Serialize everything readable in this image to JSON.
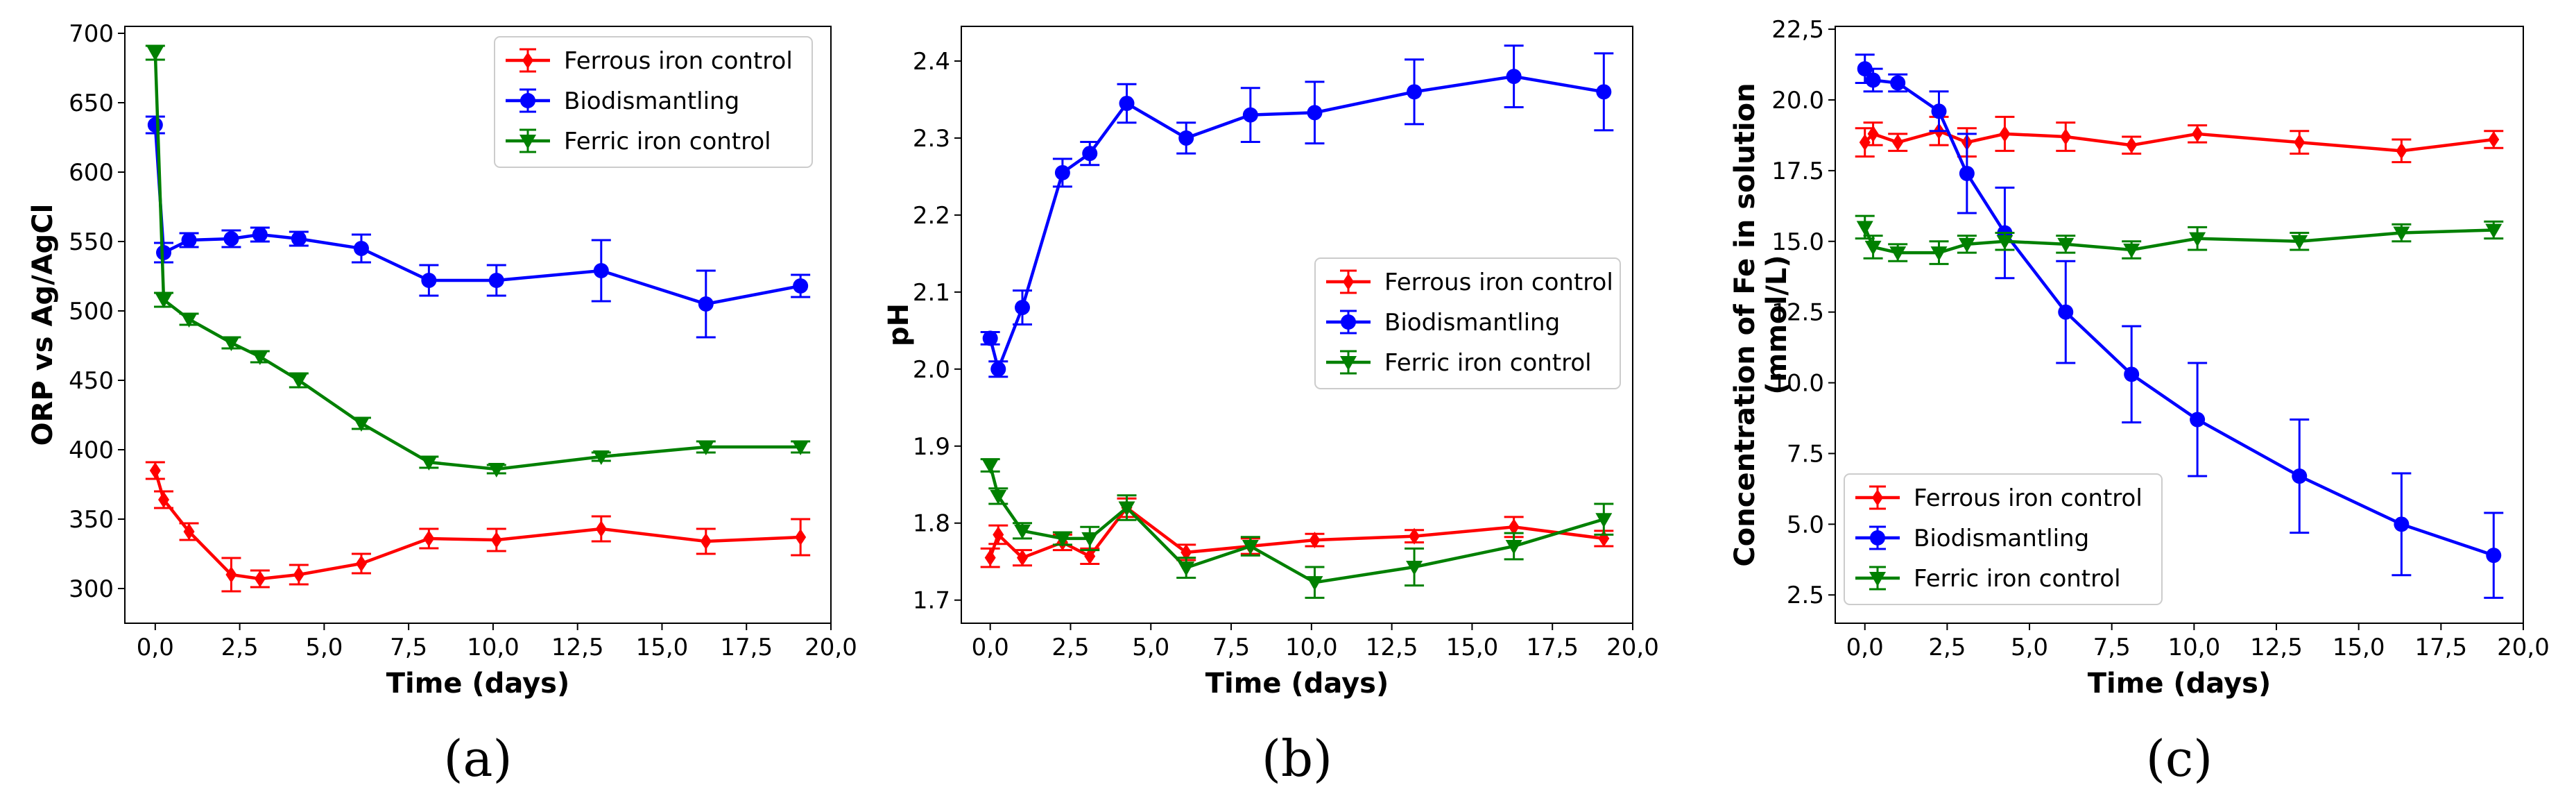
{
  "figure": {
    "panel_tags": [
      "(a)",
      "(b)",
      "(c)"
    ]
  },
  "colors": {
    "ferrous": "#ff0000",
    "bio": "#0000ff",
    "ferric": "#008000"
  },
  "chart_data": [
    {
      "type": "line",
      "panel": "(a)",
      "xlabel": "Time (days)",
      "ylabel": [
        "ORP vs Ag/AgCl"
      ],
      "xlim": [
        -0.9,
        20.0
      ],
      "ylim": [
        275,
        705
      ],
      "xticks": [
        0,
        2.5,
        5,
        7.5,
        10,
        12.5,
        15,
        17.5,
        20
      ],
      "xtick_labels": [
        "0,0",
        "2,5",
        "5,0",
        "7,5",
        "10,0",
        "12,5",
        "15,0",
        "17,5",
        "20,0"
      ],
      "yticks": [
        300,
        350,
        400,
        450,
        500,
        550,
        600,
        650,
        700
      ],
      "ytick_labels": [
        "300",
        "350",
        "400",
        "450",
        "500",
        "550",
        "600",
        "650",
        "700"
      ],
      "legend_position": "top-right",
      "series": [
        {
          "name": "Ferrous iron control",
          "color": "#ff0000",
          "marker": "diamond",
          "x": [
            0,
            0.25,
            1,
            2.25,
            3.1,
            4.25,
            6.1,
            8.1,
            10.1,
            13.2,
            16.3,
            19.1
          ],
          "y": [
            385,
            364,
            341,
            310,
            307,
            310,
            318,
            336,
            335,
            343,
            334,
            337
          ],
          "err": [
            6,
            6,
            6,
            12,
            6,
            7,
            7,
            7,
            8,
            9,
            9,
            13
          ]
        },
        {
          "name": "Biodismantling",
          "color": "#0000ff",
          "marker": "circle",
          "x": [
            0,
            0.25,
            1,
            2.25,
            3.1,
            4.25,
            6.1,
            8.1,
            10.1,
            13.2,
            16.3,
            19.1
          ],
          "y": [
            634,
            542,
            551,
            552,
            555,
            552,
            545,
            522,
            522,
            529,
            505,
            518
          ],
          "err": [
            6,
            7,
            5,
            6,
            5,
            5,
            10,
            11,
            11,
            22,
            24,
            8
          ]
        },
        {
          "name": "Ferric iron control",
          "color": "#008000",
          "marker": "triangle-down",
          "x": [
            0,
            0.25,
            1,
            2.25,
            3.1,
            4.25,
            6.1,
            8.1,
            10.1,
            13.2,
            16.3,
            19.1
          ],
          "y": [
            686,
            508,
            494,
            477,
            467,
            450,
            419,
            391,
            386,
            395,
            402,
            402
          ],
          "err": [
            5,
            5,
            4,
            4,
            4,
            5,
            4,
            4,
            3,
            3,
            4,
            4
          ]
        }
      ]
    },
    {
      "type": "line",
      "panel": "(b)",
      "xlabel": "Time (days)",
      "ylabel": [
        "pH"
      ],
      "xlim": [
        -0.9,
        20.0
      ],
      "ylim": [
        1.67,
        2.445
      ],
      "xticks": [
        0,
        2.5,
        5,
        7.5,
        10,
        12.5,
        15,
        17.5,
        20
      ],
      "xtick_labels": [
        "0,0",
        "2,5",
        "5,0",
        "7,5",
        "10,0",
        "12,5",
        "15,0",
        "17,5",
        "20,0"
      ],
      "yticks": [
        1.7,
        1.8,
        1.9,
        2.0,
        2.1,
        2.2,
        2.3,
        2.4
      ],
      "ytick_labels": [
        "1.7",
        "1.8",
        "1.9",
        "2.0",
        "2.1",
        "2.2",
        "2.3",
        "2.4"
      ],
      "legend_position": "center-right",
      "series": [
        {
          "name": "Ferrous iron control",
          "color": "#ff0000",
          "marker": "diamond",
          "x": [
            0,
            0.25,
            1,
            2.25,
            3.1,
            4.25,
            6.1,
            8.1,
            10.1,
            13.2,
            16.3,
            19.1
          ],
          "y": [
            1.755,
            1.785,
            1.755,
            1.775,
            1.757,
            1.82,
            1.762,
            1.77,
            1.778,
            1.783,
            1.795,
            1.78
          ],
          "err": [
            0.012,
            0.012,
            0.01,
            0.01,
            0.01,
            0.012,
            0.01,
            0.01,
            0.008,
            0.008,
            0.013,
            0.01
          ]
        },
        {
          "name": "Biodismantling",
          "color": "#0000ff",
          "marker": "circle",
          "x": [
            0,
            0.25,
            1,
            2.25,
            3.1,
            4.25,
            6.1,
            8.1,
            10.1,
            13.2,
            16.3,
            19.1
          ],
          "y": [
            2.04,
            2.0,
            2.08,
            2.255,
            2.28,
            2.345,
            2.3,
            2.33,
            2.333,
            2.36,
            2.38,
            2.36
          ],
          "err": [
            0.008,
            0.01,
            0.022,
            0.018,
            0.015,
            0.025,
            0.02,
            0.035,
            0.04,
            0.042,
            0.04,
            0.05
          ]
        },
        {
          "name": "Ferric iron control",
          "color": "#008000",
          "marker": "triangle-down",
          "x": [
            0,
            0.25,
            1,
            2.25,
            3.1,
            4.25,
            6.1,
            8.1,
            10.1,
            13.2,
            16.3,
            19.1
          ],
          "y": [
            1.875,
            1.835,
            1.79,
            1.78,
            1.78,
            1.82,
            1.742,
            1.77,
            1.723,
            1.743,
            1.77,
            1.805
          ],
          "err": [
            0.008,
            0.01,
            0.01,
            0.008,
            0.015,
            0.016,
            0.013,
            0.012,
            0.02,
            0.024,
            0.017,
            0.02
          ]
        }
      ]
    },
    {
      "type": "line",
      "panel": "(c)",
      "xlabel": "Time (days)",
      "ylabel": [
        "Concentration of Fe in solution",
        "(mmol/L)"
      ],
      "xlim": [
        -0.9,
        20.0
      ],
      "ylim": [
        1.5,
        22.6
      ],
      "xticks": [
        0,
        2.5,
        5,
        7.5,
        10,
        12.5,
        15,
        17.5,
        20
      ],
      "xtick_labels": [
        "0,0",
        "2,5",
        "5,0",
        "7,5",
        "10,0",
        "12,5",
        "15,0",
        "17,5",
        "20,0"
      ],
      "yticks": [
        2.5,
        5.0,
        7.5,
        10.0,
        12.5,
        15.0,
        17.5,
        20.0,
        22.5
      ],
      "ytick_labels": [
        "2.5",
        "5.0",
        "7.5",
        "10.0",
        "12.5",
        "15.0",
        "17.5",
        "20.0",
        "22,5"
      ],
      "legend_position": "lower-left",
      "series": [
        {
          "name": "Ferrous iron control",
          "color": "#ff0000",
          "marker": "diamond",
          "x": [
            0,
            0.25,
            1,
            2.25,
            3.1,
            4.25,
            6.1,
            8.1,
            10.1,
            13.2,
            16.3,
            19.1
          ],
          "y": [
            18.5,
            18.8,
            18.5,
            18.9,
            18.5,
            18.8,
            18.7,
            18.4,
            18.8,
            18.5,
            18.2,
            18.6
          ],
          "err": [
            0.5,
            0.4,
            0.3,
            0.5,
            0.5,
            0.6,
            0.5,
            0.3,
            0.3,
            0.4,
            0.4,
            0.3
          ]
        },
        {
          "name": "Biodismantling",
          "color": "#0000ff",
          "marker": "circle",
          "x": [
            0,
            0.25,
            1,
            2.25,
            3.1,
            4.25,
            6.1,
            8.1,
            10.1,
            13.2,
            16.3,
            19.1
          ],
          "y": [
            21.1,
            20.7,
            20.6,
            19.6,
            17.4,
            15.3,
            12.5,
            10.3,
            8.7,
            6.7,
            5.0,
            3.9
          ],
          "err": [
            0.5,
            0.4,
            0.3,
            0.7,
            1.4,
            1.6,
            1.8,
            1.7,
            2.0,
            2.0,
            1.8,
            1.5
          ]
        },
        {
          "name": "Ferric iron control",
          "color": "#008000",
          "marker": "triangle-down",
          "x": [
            0,
            0.25,
            1,
            2.25,
            3.1,
            4.25,
            6.1,
            8.1,
            10.1,
            13.2,
            16.3,
            19.1
          ],
          "y": [
            15.5,
            14.8,
            14.6,
            14.6,
            14.9,
            15.0,
            14.9,
            14.7,
            15.1,
            15.0,
            15.3,
            15.4
          ],
          "err": [
            0.4,
            0.4,
            0.3,
            0.4,
            0.3,
            0.3,
            0.3,
            0.3,
            0.4,
            0.3,
            0.3,
            0.3
          ]
        }
      ]
    }
  ]
}
